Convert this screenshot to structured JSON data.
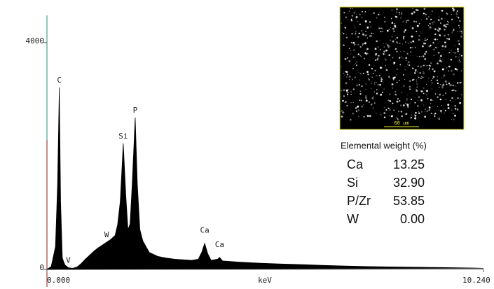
{
  "chart_data": {
    "type": "area",
    "x": [
      0,
      0.1,
      0.2,
      0.25,
      0.29,
      0.32,
      0.36,
      0.42,
      0.5,
      0.6,
      0.7,
      0.8,
      0.9,
      1.0,
      1.1,
      1.2,
      1.3,
      1.4,
      1.5,
      1.6,
      1.66,
      1.72,
      1.79,
      1.85,
      1.9,
      1.95,
      2.0,
      2.07,
      2.12,
      2.18,
      2.25,
      2.4,
      2.6,
      2.8,
      3.0,
      3.2,
      3.4,
      3.55,
      3.63,
      3.7,
      3.77,
      3.85,
      4.0,
      4.05,
      4.12,
      4.5,
      5.0,
      5.5,
      6.0,
      6.5,
      7.0,
      7.5,
      8.0,
      8.5,
      9.0,
      9.5,
      10.0,
      10.24
    ],
    "values": [
      0,
      50,
      400,
      1500,
      3210,
      1200,
      200,
      80,
      30,
      20,
      40,
      100,
      180,
      250,
      320,
      380,
      430,
      480,
      530,
      600,
      800,
      1200,
      2222,
      1300,
      700,
      800,
      1500,
      2679,
      1500,
      700,
      500,
      300,
      230,
      200,
      180,
      170,
      160,
      180,
      300,
      460,
      280,
      160,
      180,
      210,
      150,
      130,
      110,
      95,
      85,
      70,
      60,
      50,
      45,
      40,
      35,
      30,
      25,
      20
    ],
    "color": "#000000",
    "xlim": [
      0,
      10.24
    ],
    "xticks": [
      {
        "value": 0,
        "label": "0.000"
      },
      {
        "value": 10.24,
        "label": "10.240"
      }
    ],
    "xlabel": "keV",
    "ylim": [
      0,
      4480
    ],
    "yticks": [
      0,
      4000
    ],
    "annotations": [
      {
        "text": "C",
        "x": 0.29
      },
      {
        "text": "V",
        "x": 0.5
      },
      {
        "text": "W",
        "x": 1.4
      },
      {
        "text": "Si",
        "x": 1.79
      },
      {
        "text": "P",
        "x": 2.07
      },
      {
        "text": "Ca",
        "x": 3.7
      },
      {
        "text": "Ca",
        "x": 4.05
      }
    ]
  },
  "inset_image": {
    "scale_label": "60 um"
  },
  "table": {
    "title": "Elemental weight (%)",
    "rows": [
      [
        "Ca",
        "13.25"
      ],
      [
        "Si",
        "32.90"
      ],
      [
        "P/Zr",
        "53.85"
      ],
      [
        "W",
        "0.00"
      ]
    ]
  }
}
